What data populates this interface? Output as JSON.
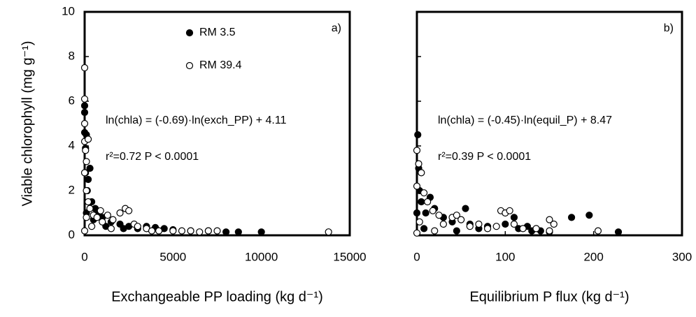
{
  "chart_data": [
    {
      "type": "scatter",
      "panel_label": "a)",
      "xlabel": "Exchangeable PP loading (kg d⁻¹)",
      "ylabel": "Viable chlorophyll (mg g⁻¹)",
      "equation": "ln(chla) = (-0.69)·ln(exch_PP) + 4.11",
      "stats": "r²=0.72 P < 0.0001",
      "xlim": [
        0,
        15000
      ],
      "xticks": [
        0,
        5000,
        10000,
        15000
      ],
      "ylim": [
        0,
        10
      ],
      "yticks": [
        0,
        2,
        4,
        6,
        8,
        10
      ],
      "legend": "upper center",
      "series": [
        {
          "name": "RM 3.5",
          "color": "#000000",
          "x": [
            0,
            0,
            0,
            50,
            100,
            300,
            200,
            150,
            400,
            600,
            800,
            1000,
            1500,
            2000,
            2500,
            3000,
            3500,
            4000,
            4500,
            5000,
            6000,
            7000,
            8000,
            8700,
            10000,
            1200,
            2200,
            100,
            50,
            500
          ],
          "y": [
            5.5,
            5.8,
            4.6,
            3.9,
            4.5,
            3.0,
            2.5,
            2.0,
            1.5,
            1.2,
            1.0,
            0.8,
            0.6,
            0.5,
            0.4,
            0.3,
            0.4,
            0.35,
            0.3,
            0.25,
            0.2,
            0.2,
            0.15,
            0.15,
            0.15,
            0.4,
            0.3,
            1.0,
            2.8,
            0.7
          ]
        },
        {
          "name": "RM 39.4",
          "color": "#ffffff",
          "x": [
            0,
            0,
            0,
            0,
            50,
            100,
            0,
            200,
            100,
            200,
            300,
            500,
            700,
            900,
            1000,
            1300,
            1600,
            2000,
            2300,
            2500,
            2800,
            3000,
            3500,
            3800,
            4200,
            5000,
            5500,
            6000,
            6500,
            7000,
            7500,
            13800,
            400,
            1500,
            100,
            0
          ],
          "y": [
            7.5,
            6.1,
            5.0,
            4.2,
            3.8,
            3.3,
            2.8,
            4.3,
            2.0,
            1.5,
            1.2,
            0.9,
            0.8,
            1.1,
            0.6,
            0.9,
            0.7,
            1.0,
            1.2,
            1.1,
            0.5,
            0.4,
            0.3,
            0.2,
            0.2,
            0.2,
            0.2,
            0.2,
            0.15,
            0.2,
            0.2,
            0.15,
            0.4,
            0.3,
            0.8,
            0.2
          ]
        }
      ]
    },
    {
      "type": "scatter",
      "panel_label": "b)",
      "xlabel": "Equilibrium P flux (kg d⁻¹)",
      "equation": "ln(chla) = (-0.45)·ln(equil_P) + 8.47",
      "stats": "r²=0.39 P < 0.0001",
      "xlim": [
        0,
        300
      ],
      "xticks": [
        0,
        100,
        200,
        300
      ],
      "ylim": [
        0,
        10
      ],
      "yticks": [
        0,
        2,
        4,
        6,
        8,
        10
      ],
      "series": [
        {
          "color": "#000000",
          "x": [
            1,
            2,
            3,
            5,
            10,
            15,
            20,
            30,
            40,
            55,
            60,
            70,
            80,
            100,
            110,
            115,
            125,
            130,
            140,
            150,
            175,
            195,
            228,
            0,
            8,
            45
          ],
          "y": [
            4.5,
            3.0,
            2.0,
            1.5,
            1.0,
            1.7,
            1.2,
            0.8,
            0.6,
            1.2,
            0.5,
            0.3,
            0.4,
            0.5,
            0.8,
            0.3,
            0.4,
            0.2,
            0.2,
            0.15,
            0.8,
            0.9,
            0.15,
            1.0,
            0.3,
            0.2
          ]
        },
        {
          "color": "#ffffff",
          "x": [
            0,
            2,
            5,
            0,
            8,
            12,
            18,
            25,
            30,
            40,
            45,
            50,
            60,
            70,
            80,
            90,
            95,
            100,
            105,
            110,
            120,
            135,
            150,
            155,
            150,
            205,
            0,
            20,
            3
          ],
          "y": [
            3.8,
            3.2,
            2.8,
            2.2,
            1.9,
            1.5,
            1.1,
            0.9,
            0.5,
            0.8,
            0.9,
            0.7,
            0.4,
            0.5,
            0.3,
            0.4,
            1.1,
            1.0,
            1.1,
            0.5,
            0.3,
            0.3,
            0.7,
            0.5,
            0.2,
            0.2,
            0.1,
            0.2,
            0.6
          ]
        }
      ]
    }
  ]
}
